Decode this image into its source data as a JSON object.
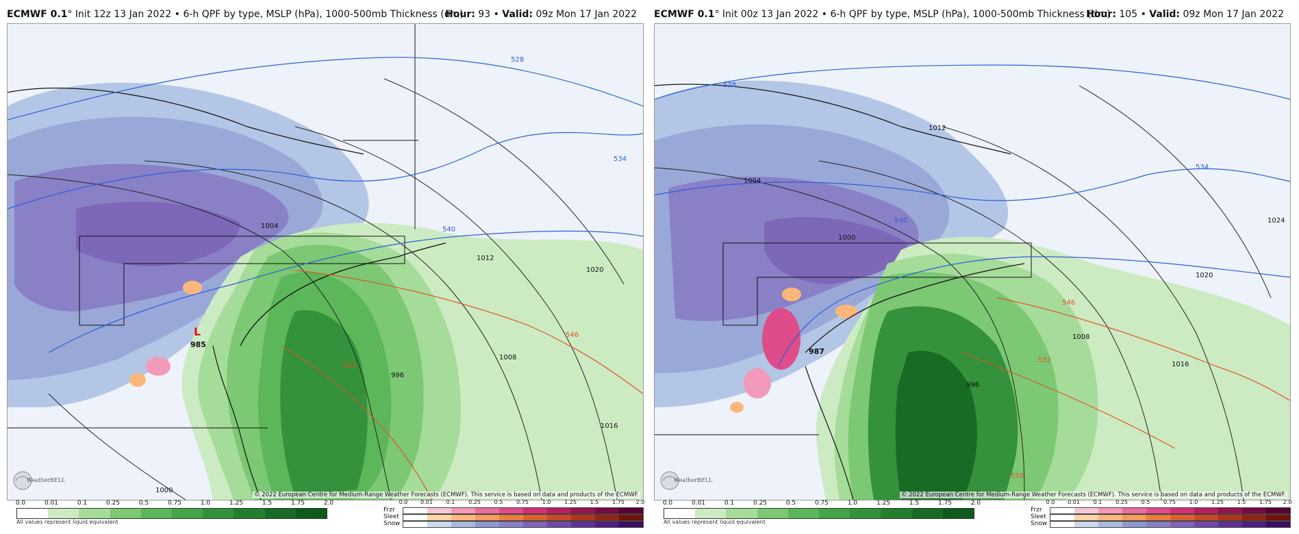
{
  "panels": [
    {
      "model": "ECMWF 0.1",
      "degree": "°",
      "init": "Init 12z 13 Jan 2022",
      "product": "6-h QPF by type, MSLP (hPa), 1000-500mb Thickness (dm)",
      "hour_label": "Hour:",
      "hour": "93",
      "valid_label": "Valid:",
      "valid": "09z Mon 17 Jan 2022",
      "low_marker": "L",
      "low_pressure": "985",
      "isobar_labels": [
        "1004",
        "1012",
        "1020",
        "1008",
        "996",
        "1016",
        "1000"
      ],
      "thickness_labels": [
        "528",
        "534",
        "540",
        "546",
        "552"
      ]
    },
    {
      "model": "ECMWF 0.1",
      "degree": "°",
      "init": "Init 00z 13 Jan 2022",
      "product": "6-h QPF by type, MSLP (hPa), 1000-500mb Thickness (dm)",
      "hour_label": "Hour:",
      "hour": "105",
      "valid_label": "Valid:",
      "valid": "09z Mon 17 Jan 2022",
      "low_marker": "",
      "low_pressure": "987",
      "isobar_labels": [
        "1012",
        "1004",
        "1000",
        "1024",
        "1020",
        "1008",
        "1016",
        "996"
      ],
      "thickness_labels": [
        "528",
        "534",
        "540",
        "546",
        "552",
        "558"
      ]
    }
  ],
  "copyright": "© 2022 European Centre for Medium-Range Weather Forecasts (ECMWF). This service is based on data and products of the ECMWF.",
  "logo_text": "WeatherBELL",
  "legend": {
    "qpf_ticks": [
      "0.0",
      "0.01",
      "0.1",
      "0.25",
      "0.5",
      "0.75",
      "1.0",
      "1.25",
      "1.5",
      "1.75",
      "2.0"
    ],
    "note": "All values represent liquid equivalent",
    "ptype_ticks": [
      "0.0",
      "0.01",
      "0.1",
      "0.25",
      "0.5",
      "0.75",
      "1.0",
      "1.25",
      "1.5",
      "1.75",
      "2.0"
    ],
    "ptype_rows": [
      "Frzr",
      "Sleet",
      "Snow"
    ]
  },
  "colors": {
    "rain": [
      "#ffffff",
      "#cdebc3",
      "#a6dc9a",
      "#7cc874",
      "#5cb65a",
      "#44a448",
      "#33923b",
      "#237f2e",
      "#176b25",
      "#0d5a1c"
    ],
    "frzr": [
      "#ffffff",
      "#f7c6d9",
      "#f19ab9",
      "#e7709e",
      "#de4d8a",
      "#d22f72",
      "#b51f60",
      "#921451",
      "#740a42",
      "#560333"
    ],
    "sleet": [
      "#ffffff",
      "#ffd4a6",
      "#fbb77b",
      "#f59b5b",
      "#ea7d3f",
      "#dd6130",
      "#c94a25",
      "#b0351c",
      "#922313",
      "#70140b"
    ],
    "snow": [
      "#ffffff",
      "#c9d8ec",
      "#a8b9de",
      "#8e99d0",
      "#8780c4",
      "#7d64b8",
      "#6f4aa7",
      "#5f3295",
      "#4e1f7e",
      "#3a0f63"
    ],
    "thickness_cold": "#2b5fd8",
    "thickness_warm": "#e0542a",
    "isobar": "#222222"
  }
}
